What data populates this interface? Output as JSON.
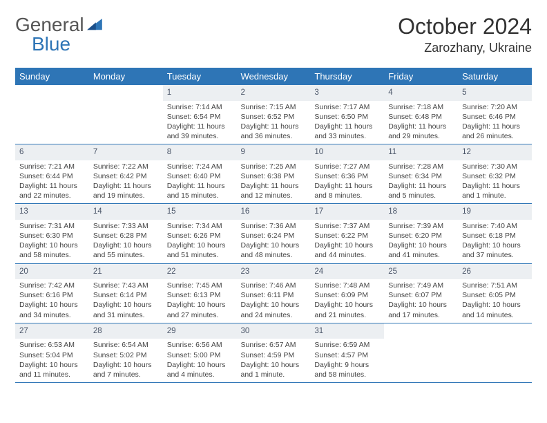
{
  "brand": {
    "part1": "General",
    "part2": "Blue",
    "color1": "#6b6b6b",
    "color2": "#2e75b6"
  },
  "title": "October 2024",
  "location": "Zarozhany, Ukraine",
  "theme": {
    "header_bg": "#2e75b6",
    "header_fg": "#ffffff",
    "daynum_bg": "#eceff2",
    "daynum_fg": "#4a5568",
    "border": "#2e75b6",
    "body_fg": "#444444",
    "page_bg": "#ffffff"
  },
  "weekdays": [
    "Sunday",
    "Monday",
    "Tuesday",
    "Wednesday",
    "Thursday",
    "Friday",
    "Saturday"
  ],
  "weeks": [
    [
      null,
      null,
      {
        "n": "1",
        "sr": "Sunrise: 7:14 AM",
        "ss": "Sunset: 6:54 PM",
        "dl": "Daylight: 11 hours and 39 minutes."
      },
      {
        "n": "2",
        "sr": "Sunrise: 7:15 AM",
        "ss": "Sunset: 6:52 PM",
        "dl": "Daylight: 11 hours and 36 minutes."
      },
      {
        "n": "3",
        "sr": "Sunrise: 7:17 AM",
        "ss": "Sunset: 6:50 PM",
        "dl": "Daylight: 11 hours and 33 minutes."
      },
      {
        "n": "4",
        "sr": "Sunrise: 7:18 AM",
        "ss": "Sunset: 6:48 PM",
        "dl": "Daylight: 11 hours and 29 minutes."
      },
      {
        "n": "5",
        "sr": "Sunrise: 7:20 AM",
        "ss": "Sunset: 6:46 PM",
        "dl": "Daylight: 11 hours and 26 minutes."
      }
    ],
    [
      {
        "n": "6",
        "sr": "Sunrise: 7:21 AM",
        "ss": "Sunset: 6:44 PM",
        "dl": "Daylight: 11 hours and 22 minutes."
      },
      {
        "n": "7",
        "sr": "Sunrise: 7:22 AM",
        "ss": "Sunset: 6:42 PM",
        "dl": "Daylight: 11 hours and 19 minutes."
      },
      {
        "n": "8",
        "sr": "Sunrise: 7:24 AM",
        "ss": "Sunset: 6:40 PM",
        "dl": "Daylight: 11 hours and 15 minutes."
      },
      {
        "n": "9",
        "sr": "Sunrise: 7:25 AM",
        "ss": "Sunset: 6:38 PM",
        "dl": "Daylight: 11 hours and 12 minutes."
      },
      {
        "n": "10",
        "sr": "Sunrise: 7:27 AM",
        "ss": "Sunset: 6:36 PM",
        "dl": "Daylight: 11 hours and 8 minutes."
      },
      {
        "n": "11",
        "sr": "Sunrise: 7:28 AM",
        "ss": "Sunset: 6:34 PM",
        "dl": "Daylight: 11 hours and 5 minutes."
      },
      {
        "n": "12",
        "sr": "Sunrise: 7:30 AM",
        "ss": "Sunset: 6:32 PM",
        "dl": "Daylight: 11 hours and 1 minute."
      }
    ],
    [
      {
        "n": "13",
        "sr": "Sunrise: 7:31 AM",
        "ss": "Sunset: 6:30 PM",
        "dl": "Daylight: 10 hours and 58 minutes."
      },
      {
        "n": "14",
        "sr": "Sunrise: 7:33 AM",
        "ss": "Sunset: 6:28 PM",
        "dl": "Daylight: 10 hours and 55 minutes."
      },
      {
        "n": "15",
        "sr": "Sunrise: 7:34 AM",
        "ss": "Sunset: 6:26 PM",
        "dl": "Daylight: 10 hours and 51 minutes."
      },
      {
        "n": "16",
        "sr": "Sunrise: 7:36 AM",
        "ss": "Sunset: 6:24 PM",
        "dl": "Daylight: 10 hours and 48 minutes."
      },
      {
        "n": "17",
        "sr": "Sunrise: 7:37 AM",
        "ss": "Sunset: 6:22 PM",
        "dl": "Daylight: 10 hours and 44 minutes."
      },
      {
        "n": "18",
        "sr": "Sunrise: 7:39 AM",
        "ss": "Sunset: 6:20 PM",
        "dl": "Daylight: 10 hours and 41 minutes."
      },
      {
        "n": "19",
        "sr": "Sunrise: 7:40 AM",
        "ss": "Sunset: 6:18 PM",
        "dl": "Daylight: 10 hours and 37 minutes."
      }
    ],
    [
      {
        "n": "20",
        "sr": "Sunrise: 7:42 AM",
        "ss": "Sunset: 6:16 PM",
        "dl": "Daylight: 10 hours and 34 minutes."
      },
      {
        "n": "21",
        "sr": "Sunrise: 7:43 AM",
        "ss": "Sunset: 6:14 PM",
        "dl": "Daylight: 10 hours and 31 minutes."
      },
      {
        "n": "22",
        "sr": "Sunrise: 7:45 AM",
        "ss": "Sunset: 6:13 PM",
        "dl": "Daylight: 10 hours and 27 minutes."
      },
      {
        "n": "23",
        "sr": "Sunrise: 7:46 AM",
        "ss": "Sunset: 6:11 PM",
        "dl": "Daylight: 10 hours and 24 minutes."
      },
      {
        "n": "24",
        "sr": "Sunrise: 7:48 AM",
        "ss": "Sunset: 6:09 PM",
        "dl": "Daylight: 10 hours and 21 minutes."
      },
      {
        "n": "25",
        "sr": "Sunrise: 7:49 AM",
        "ss": "Sunset: 6:07 PM",
        "dl": "Daylight: 10 hours and 17 minutes."
      },
      {
        "n": "26",
        "sr": "Sunrise: 7:51 AM",
        "ss": "Sunset: 6:05 PM",
        "dl": "Daylight: 10 hours and 14 minutes."
      }
    ],
    [
      {
        "n": "27",
        "sr": "Sunrise: 6:53 AM",
        "ss": "Sunset: 5:04 PM",
        "dl": "Daylight: 10 hours and 11 minutes."
      },
      {
        "n": "28",
        "sr": "Sunrise: 6:54 AM",
        "ss": "Sunset: 5:02 PM",
        "dl": "Daylight: 10 hours and 7 minutes."
      },
      {
        "n": "29",
        "sr": "Sunrise: 6:56 AM",
        "ss": "Sunset: 5:00 PM",
        "dl": "Daylight: 10 hours and 4 minutes."
      },
      {
        "n": "30",
        "sr": "Sunrise: 6:57 AM",
        "ss": "Sunset: 4:59 PM",
        "dl": "Daylight: 10 hours and 1 minute."
      },
      {
        "n": "31",
        "sr": "Sunrise: 6:59 AM",
        "ss": "Sunset: 4:57 PM",
        "dl": "Daylight: 9 hours and 58 minutes."
      },
      null,
      null
    ]
  ]
}
